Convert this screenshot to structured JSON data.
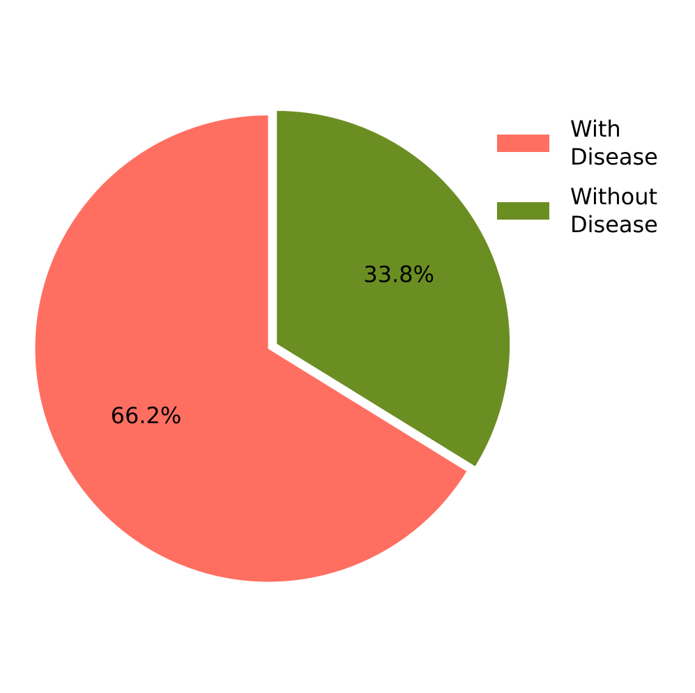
{
  "chart_data": {
    "type": "pie",
    "categories": [
      "With Disease",
      "Without Disease"
    ],
    "values": [
      66.2,
      33.8
    ],
    "value_labels": [
      "66.2%",
      "33.8%"
    ],
    "colors": [
      "#ff6f61",
      "#6b8e23"
    ],
    "explode": [
      0,
      0.04
    ],
    "start_angle": 90,
    "legend": "upper right"
  }
}
